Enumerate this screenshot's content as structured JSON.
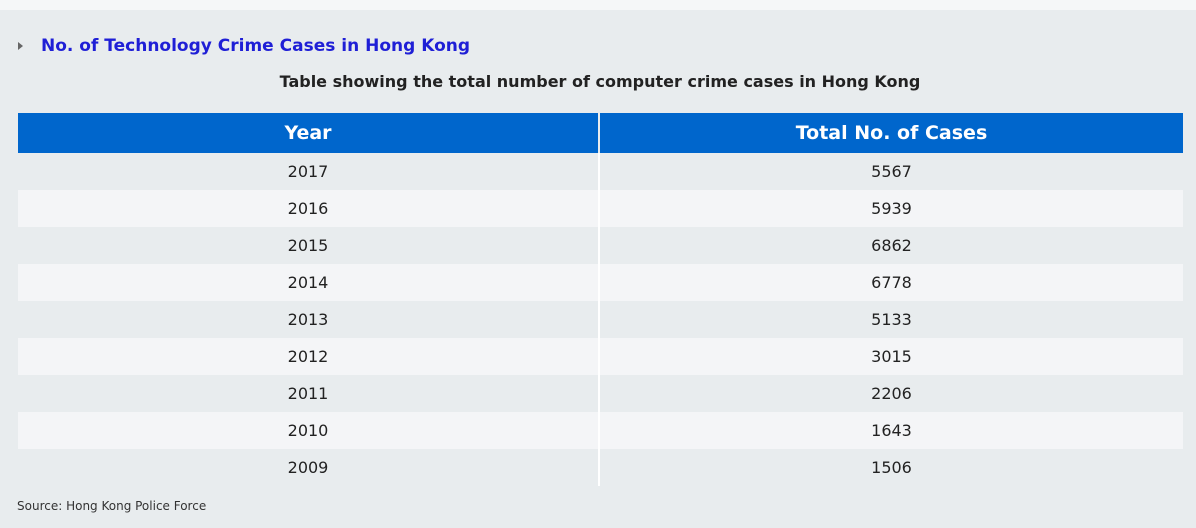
{
  "section": {
    "title": "No. of Technology Crime Cases in Hong Kong"
  },
  "table": {
    "caption": "Table showing the total number of computer crime cases in Hong Kong",
    "headers": [
      "Year",
      "Total No. of Cases"
    ],
    "rows": [
      [
        "2017",
        "5567"
      ],
      [
        "2016",
        "5939"
      ],
      [
        "2015",
        "6862"
      ],
      [
        "2014",
        "6778"
      ],
      [
        "2013",
        "5133"
      ],
      [
        "2012",
        "3015"
      ],
      [
        "2011",
        "2206"
      ],
      [
        "2010",
        "1643"
      ],
      [
        "2009",
        "1506"
      ]
    ]
  },
  "footer": {
    "source": "Source: Hong Kong Police Force"
  },
  "colors": {
    "header_bg": "#0066cc",
    "title_link": "#1f1fd6",
    "page_bg": "#e8ecee"
  },
  "icons": {
    "expander": "triangle-right-icon"
  }
}
